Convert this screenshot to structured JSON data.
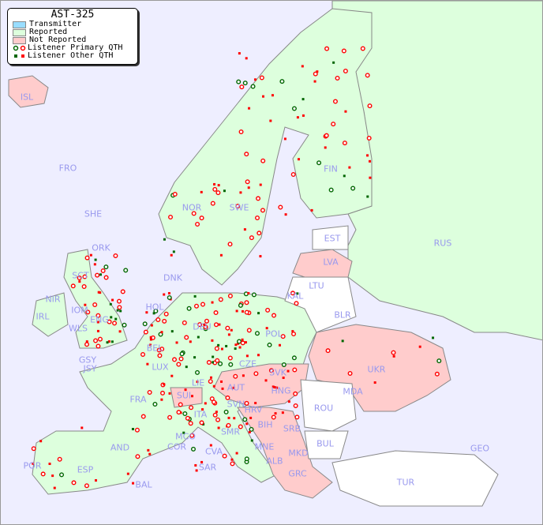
{
  "legend": {
    "title": "AST-325",
    "items": [
      {
        "label": "Transmitter",
        "color": "#99ddff"
      },
      {
        "label": "Reported",
        "color": "#ddffdd"
      },
      {
        "label": "Not Reported",
        "color": "#ffcccc"
      },
      {
        "label": "Listener Primary QTH",
        "colors": [
          "#006600",
          "#ff0000"
        ]
      },
      {
        "label": "Listener Other QTH",
        "colors": [
          "#006600",
          "#ff0000"
        ]
      }
    ]
  },
  "colors": {
    "sea": "#eeeeff",
    "reported": "#ddffdd",
    "not_reported": "#ffcccc",
    "no_data": "#ffffff",
    "label": "#9999ee"
  },
  "countries": [
    "ISL",
    "FRO",
    "SHE",
    "ORK",
    "NOR",
    "SWE",
    "FIN",
    "RUS",
    "EST",
    "LVA",
    "LTU",
    "KAL",
    "BLR",
    "DNK",
    "IRL",
    "NIR",
    "SCT",
    "IOM",
    "WLS",
    "ENG",
    "GSY",
    "JSY",
    "HOL",
    "BEL",
    "LUX",
    "DEU",
    "POL",
    "CZE",
    "SVK",
    "UKR",
    "MDA",
    "AUT",
    "HNG",
    "SUI",
    "LIE",
    "FRA",
    "SVN",
    "HRV",
    "ROU",
    "BIH",
    "SRB",
    "BUL",
    "MNE",
    "MKD",
    "ALB",
    "GRC",
    "TUR",
    "GEO",
    "ITA",
    "SMR",
    "MCO",
    "COR",
    "CVA",
    "SAR",
    "AND",
    "ESP",
    "POR",
    "BAL"
  ]
}
